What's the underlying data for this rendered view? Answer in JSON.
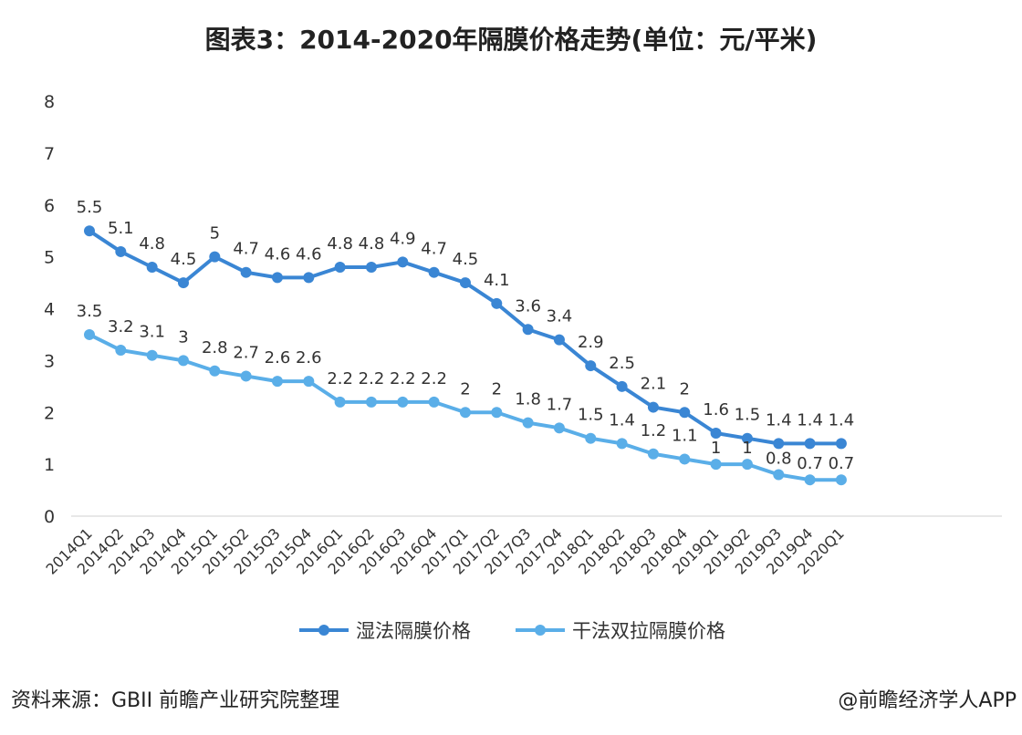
{
  "page": {
    "title": "图表3：2014-2020年隔膜价格走势(单位：元/平米)",
    "source": "资料来源：GBII 前瞻产业研究院整理",
    "credit": "@前瞻经济学人APP"
  },
  "colors": {
    "wet": "#3a86d4",
    "dry": "#5aaee8",
    "grid_text": "#333333"
  },
  "chart_data": {
    "type": "line",
    "title": "图表3：2014-2020年隔膜价格走势(单位：元/平米)",
    "xlabel": "",
    "ylabel": "",
    "ylim": [
      0,
      8
    ],
    "yticks": [
      0,
      1,
      2,
      3,
      4,
      5,
      6,
      7,
      8
    ],
    "legend_position": "bottom",
    "categories": [
      "2014Q1",
      "2014Q2",
      "2014Q3",
      "2014Q4",
      "2015Q1",
      "2015Q2",
      "2015Q3",
      "2015Q4",
      "2016Q1",
      "2016Q2",
      "2016Q3",
      "2016Q4",
      "2017Q1",
      "2017Q2",
      "2017Q3",
      "2017Q4",
      "2018Q1",
      "2018Q2",
      "2018Q3",
      "2018Q4",
      "2019Q1",
      "2019Q2",
      "2019Q3",
      "2019Q4",
      "2020Q1"
    ],
    "series": [
      {
        "name": "湿法隔膜价格",
        "values": [
          5.5,
          5.1,
          4.8,
          4.5,
          5,
          4.7,
          4.6,
          4.6,
          4.8,
          4.8,
          4.9,
          4.7,
          4.5,
          4.1,
          3.6,
          3.4,
          2.9,
          2.5,
          2.1,
          2,
          1.6,
          1.5,
          1.4,
          1.4,
          1.4
        ]
      },
      {
        "name": "干法双拉隔膜价格",
        "values": [
          3.5,
          3.2,
          3.1,
          3,
          2.8,
          2.7,
          2.6,
          2.6,
          2.2,
          2.2,
          2.2,
          2.2,
          2,
          2,
          1.8,
          1.7,
          1.5,
          1.4,
          1.2,
          1.1,
          1,
          1,
          0.8,
          0.7,
          0.7
        ]
      }
    ]
  }
}
